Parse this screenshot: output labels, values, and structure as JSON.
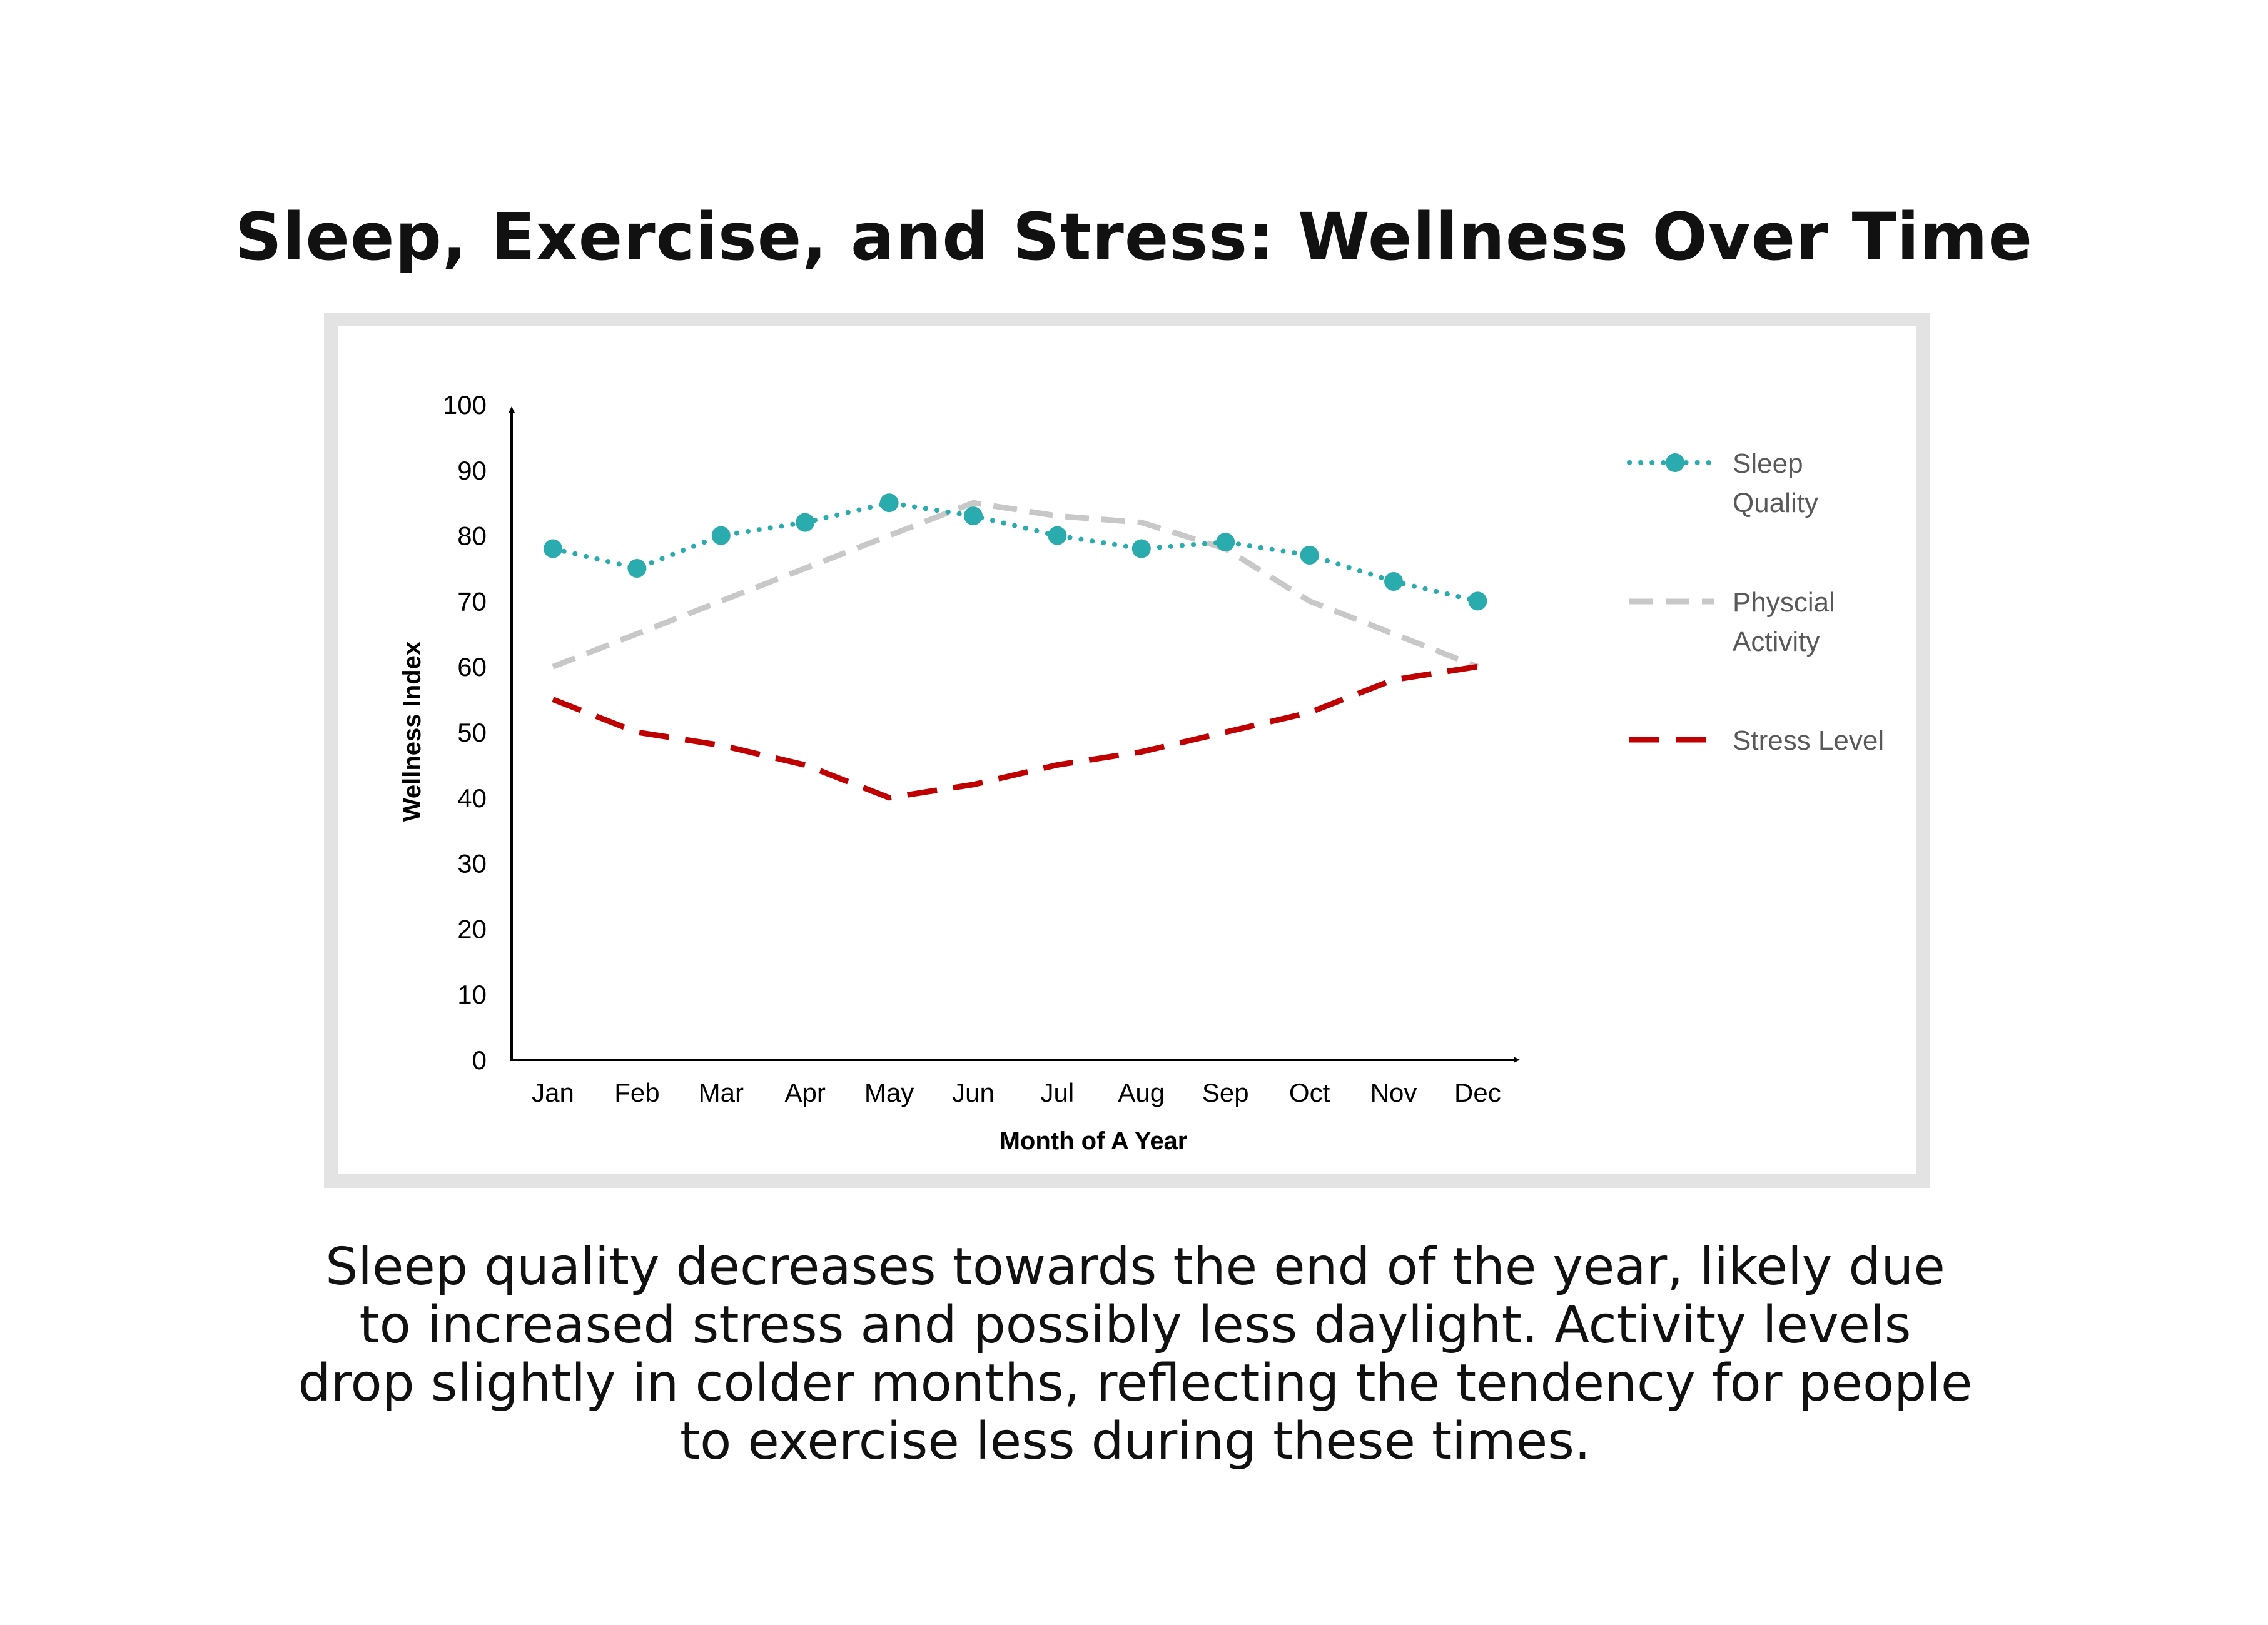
{
  "title": "Sleep, Exercise, and Stress: Wellness Over Time",
  "caption": "Sleep quality decreases towards the end of the year, likely due to increased stress and possibly less daylight. Activity levels drop slightly in colder months, reflecting the tendency for people to exercise less during these times.",
  "chart_data": {
    "type": "line",
    "categories": [
      "Jan",
      "Feb",
      "Mar",
      "Apr",
      "May",
      "Jun",
      "Jul",
      "Aug",
      "Sep",
      "Oct",
      "Nov",
      "Dec"
    ],
    "xlabel": "Month of A Year",
    "ylabel": "Wellness Index",
    "ylim": [
      0,
      100
    ],
    "yticks": [
      0,
      10,
      20,
      30,
      40,
      50,
      60,
      70,
      80,
      90,
      100
    ],
    "grid": false,
    "legend": "right",
    "series": [
      {
        "name": "Sleep Quality",
        "name_lines": [
          "Sleep",
          "Quality"
        ],
        "color": "#2aabae",
        "style": "dotted-markers",
        "values": [
          78,
          75,
          80,
          82,
          85,
          83,
          80,
          78,
          79,
          77,
          73,
          70
        ]
      },
      {
        "name": "Physcial Activity",
        "name_lines": [
          "Physcial",
          "Activity"
        ],
        "color": "#c8c8c8",
        "style": "dashed",
        "values": [
          60,
          65,
          70,
          75,
          80,
          85,
          83,
          82,
          78,
          70,
          65,
          60
        ]
      },
      {
        "name": "Stress Level",
        "name_lines": [
          "Stress Level"
        ],
        "color": "#c00000",
        "style": "dashed",
        "values": [
          55,
          50,
          48,
          45,
          40,
          42,
          45,
          47,
          50,
          53,
          58,
          60
        ]
      }
    ]
  }
}
